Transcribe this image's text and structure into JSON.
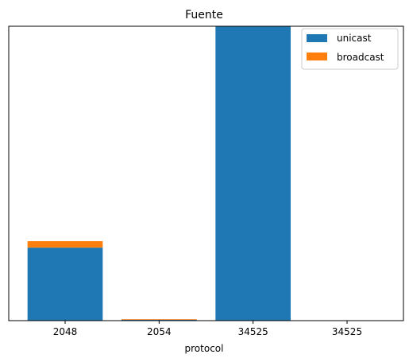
{
  "chart_data": {
    "type": "bar",
    "stacked": true,
    "title": "Fuente",
    "xlabel": "protocol",
    "ylabel": "",
    "categories": [
      "2048",
      "2054",
      "34525",
      "34525"
    ],
    "series": [
      {
        "name": "unicast",
        "color": "#1f77b4",
        "values": [
          24.8,
          0.3,
          100,
          0
        ]
      },
      {
        "name": "broadcast",
        "color": "#ff7f0e",
        "values": [
          2.2,
          0.2,
          0,
          0
        ]
      }
    ],
    "ylim": [
      0,
      100
    ],
    "yticks_visible": false,
    "grid": false,
    "legend_position": "top-right"
  }
}
